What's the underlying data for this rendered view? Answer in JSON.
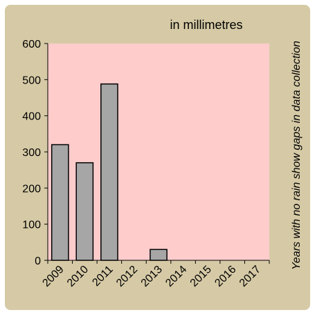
{
  "chart_data": {
    "type": "bar",
    "title": "in millimetres",
    "annotation": "Years with no rain show gaps in data collection",
    "categories": [
      "2009",
      "2010",
      "2011",
      "2012",
      "2013",
      "2014",
      "2015",
      "2016",
      "2017"
    ],
    "values": [
      320,
      270,
      488,
      null,
      30,
      null,
      null,
      null,
      null
    ],
    "ylim": [
      0,
      600
    ],
    "yticks": [
      0,
      100,
      200,
      300,
      400,
      500,
      600
    ],
    "xlabel": "",
    "ylabel": "",
    "grid": false,
    "colors": {
      "frame_background": "#d6caa6",
      "plot_background": "#ffcccc",
      "bar_fill": "#a6a6a6",
      "bar_stroke": "#000000"
    }
  }
}
